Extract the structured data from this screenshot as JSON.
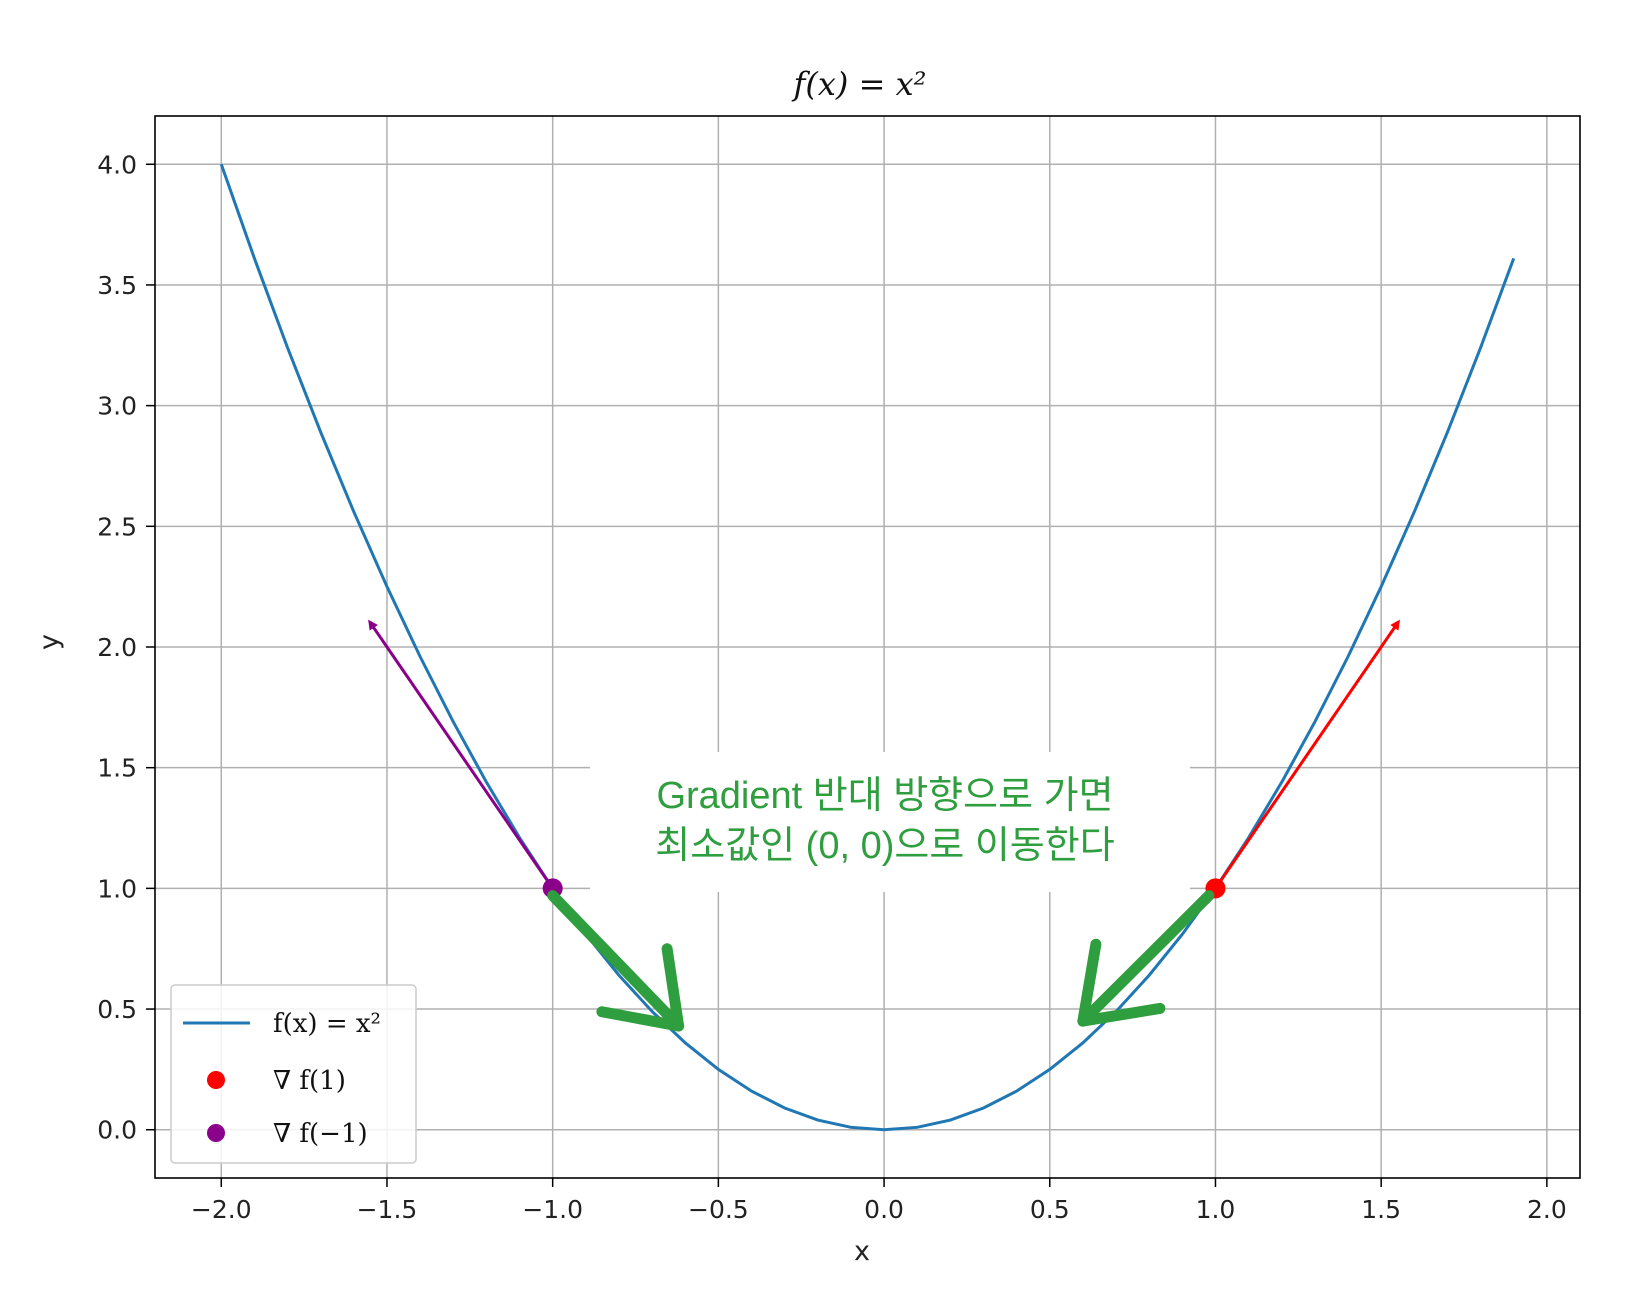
{
  "chart_data": {
    "type": "line",
    "title": "f(x) = x²",
    "xlabel": "x",
    "ylabel": "y",
    "xlim": [
      -2.2,
      2.1
    ],
    "ylim": [
      -0.2,
      4.2
    ],
    "xticks": [
      -2.0,
      -1.5,
      -1.0,
      -0.5,
      0.0,
      0.5,
      1.0,
      1.5,
      2.0
    ],
    "xtick_labels": [
      "−2.0",
      "−1.5",
      "−1.0",
      "−0.5",
      "0.0",
      "0.5",
      "1.0",
      "1.5",
      "2.0"
    ],
    "yticks": [
      0.0,
      0.5,
      1.0,
      1.5,
      2.0,
      2.5,
      3.0,
      3.5,
      4.0
    ],
    "ytick_labels": [
      "0.0",
      "0.5",
      "1.0",
      "1.5",
      "2.0",
      "2.5",
      "3.0",
      "3.5",
      "4.0"
    ],
    "grid": true,
    "legend_position": "lower-left",
    "series": [
      {
        "name": "f(x) = x²",
        "type": "line",
        "color": "#1f77b4",
        "function": "x^2",
        "x_range": [
          -2.0,
          1.9
        ],
        "step": 0.1
      },
      {
        "name": "∇ f(1)",
        "type": "scatter",
        "color": "#ff0000",
        "x": [
          1.0
        ],
        "y": [
          1.0
        ]
      },
      {
        "name": "∇ f(−1)",
        "type": "scatter",
        "color": "#8b008b",
        "x": [
          -1.0
        ],
        "y": [
          1.0
        ]
      }
    ],
    "arrows": [
      {
        "from": [
          1.0,
          1.0
        ],
        "to": [
          1.55,
          2.1
        ],
        "color": "#ff0000"
      },
      {
        "from": [
          -1.0,
          1.0
        ],
        "to": [
          -1.55,
          2.1
        ],
        "color": "#8b008b"
      }
    ],
    "annotation": {
      "lines": [
        "Gradient 반대 방향으로 가면",
        "최소값인 (0, 0)으로 이동한다"
      ],
      "color": "#2e9e3e",
      "arrows": [
        {
          "from": [
            -1.0,
            0.97
          ],
          "to": [
            -0.62,
            0.43
          ]
        },
        {
          "from": [
            0.98,
            0.97
          ],
          "to": [
            0.6,
            0.45
          ]
        }
      ]
    }
  }
}
